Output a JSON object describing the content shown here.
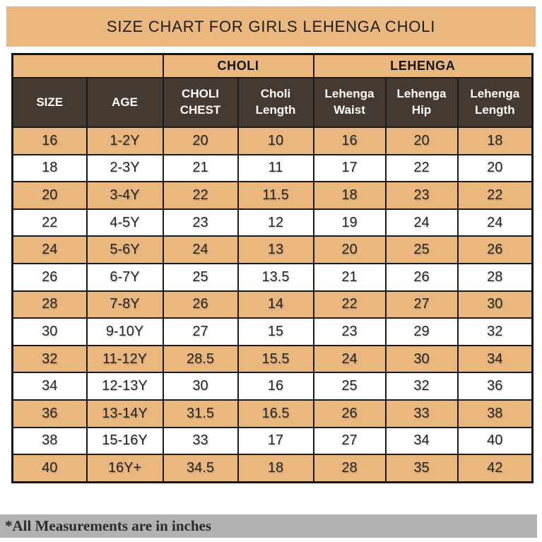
{
  "page": {
    "title": "SIZE CHART FOR GIRLS LEHENGA CHOLI",
    "footnote": "*All Measurements are in inches"
  },
  "colors": {
    "accent_tan": "#EAB77E",
    "header_brown": "#443A32",
    "border_dark": "#1B1B1B",
    "footer_gray": "#B2B2B2",
    "row_white": "#FFFFFF",
    "header_text": "#FFFFFF",
    "body_text": "#252525"
  },
  "chart_data": {
    "type": "table",
    "title": "SIZE CHART FOR GIRLS LEHENGA CHOLI",
    "group_headers": [
      {
        "label": "",
        "colspan": 2
      },
      {
        "label": "CHOLI",
        "colspan": 2
      },
      {
        "label": "LEHENGA",
        "colspan": 3
      }
    ],
    "columns": [
      "SIZE",
      "AGE",
      "CHOLI CHEST",
      "Choli Length",
      "Lehenga Waist",
      "Lehenga Hip",
      "Lehenga Length"
    ],
    "rows": [
      [
        "16",
        "1-2Y",
        "20",
        "10",
        "16",
        "20",
        "18"
      ],
      [
        "18",
        "2-3Y",
        "21",
        "11",
        "17",
        "22",
        "20"
      ],
      [
        "20",
        "3-4Y",
        "22",
        "11.5",
        "18",
        "23",
        "22"
      ],
      [
        "22",
        "4-5Y",
        "23",
        "12",
        "19",
        "24",
        "24"
      ],
      [
        "24",
        "5-6Y",
        "24",
        "13",
        "20",
        "25",
        "26"
      ],
      [
        "26",
        "6-7Y",
        "25",
        "13.5",
        "21",
        "26",
        "28"
      ],
      [
        "28",
        "7-8Y",
        "26",
        "14",
        "22",
        "27",
        "30"
      ],
      [
        "30",
        "9-10Y",
        "27",
        "15",
        "23",
        "29",
        "32"
      ],
      [
        "32",
        "11-12Y",
        "28.5",
        "15.5",
        "24",
        "30",
        "34"
      ],
      [
        "34",
        "12-13Y",
        "30",
        "16",
        "25",
        "32",
        "36"
      ],
      [
        "36",
        "13-14Y",
        "31.5",
        "16.5",
        "26",
        "33",
        "38"
      ],
      [
        "38",
        "15-16Y",
        "33",
        "17",
        "27",
        "34",
        "40"
      ],
      [
        "40",
        "16Y+",
        "34.5",
        "18",
        "28",
        "35",
        "42"
      ]
    ],
    "units_note": "*All Measurements are in inches",
    "layout": {
      "striped": true,
      "stripe_color": "#EAB77E",
      "first_stripe_row": 1
    }
  }
}
